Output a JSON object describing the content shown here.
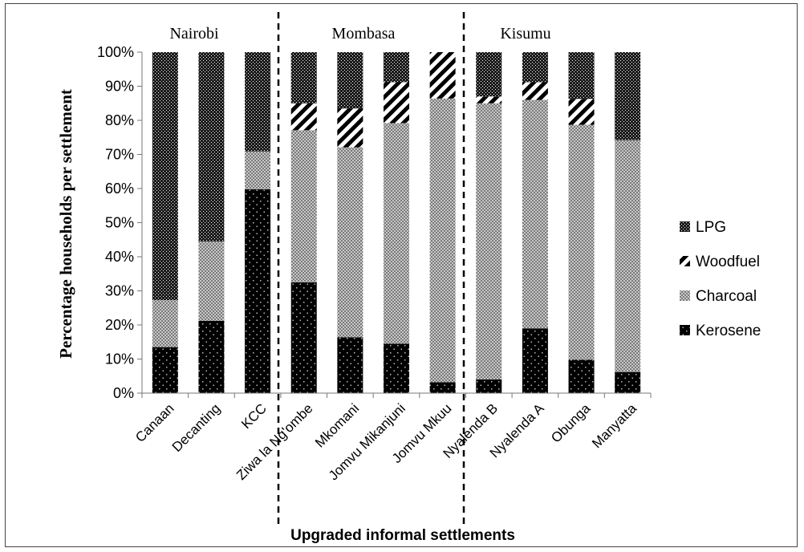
{
  "chart_data": {
    "type": "bar",
    "stacked": true,
    "normalized": true,
    "categories": [
      "Canaan",
      "Decanting",
      "KCC",
      "Ziwa la Ng'ombe",
      "Mkomani",
      "Jomvu Mikanjuni",
      "Jomvu Mkuu",
      "Nyalenda B",
      "Nyalenda A",
      "Obunga",
      "Manyatta"
    ],
    "series": [
      {
        "name": "Kerosene",
        "values": [
          13.5,
          21.2,
          59.8,
          32.5,
          16.4,
          14.5,
          3.2,
          4.0,
          19.0,
          9.8,
          6.2
        ]
      },
      {
        "name": "Charcoal",
        "values": [
          13.8,
          23.3,
          11.1,
          44.6,
          55.7,
          64.7,
          83.2,
          81.0,
          67.0,
          68.9,
          68.0
        ]
      },
      {
        "name": "Woodfuel",
        "values": [
          0,
          0,
          0,
          7.9,
          11.4,
          12.0,
          13.6,
          2.0,
          5.2,
          7.6,
          0
        ]
      },
      {
        "name": "LPG",
        "values": [
          72.7,
          55.5,
          29.1,
          15.0,
          16.5,
          8.8,
          0,
          13.0,
          8.8,
          13.7,
          25.8
        ]
      }
    ],
    "groups": [
      {
        "name": "Nairobi",
        "start": 0,
        "end": 2
      },
      {
        "name": "Mombasa",
        "start": 3,
        "end": 6
      },
      {
        "name": "Kisumu",
        "start": 7,
        "end": 10
      }
    ],
    "ylabel": "Percentage households per settlement",
    "xlabel": "Upgraded informal settlements",
    "ylim": [
      0,
      100
    ],
    "yticks": [
      "0%",
      "10%",
      "20%",
      "30%",
      "40%",
      "50%",
      "60%",
      "70%",
      "80%",
      "90%",
      "100%"
    ],
    "legend": {
      "position": "right",
      "order": [
        "LPG",
        "Woodfuel",
        "Charcoal",
        "Kerosene"
      ]
    },
    "grid": false
  }
}
